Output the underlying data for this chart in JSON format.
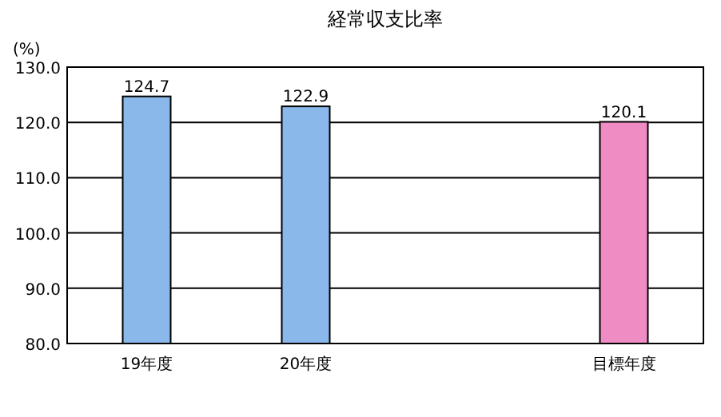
{
  "chart_data": {
    "type": "bar",
    "title": "経常収支比率",
    "ylabel": "(%)",
    "categories": [
      "19年度",
      "20年度",
      null,
      "目標年度"
    ],
    "values": [
      124.7,
      122.9,
      null,
      120.1
    ],
    "colors": [
      "#8ab8ea",
      "#8ab8ea",
      null,
      "#f08cc4"
    ],
    "value_labels": [
      "124.7",
      "122.9",
      null,
      "120.1"
    ],
    "ylim": [
      80,
      130
    ],
    "yticks": [
      {
        "value": 80,
        "label": "80.0"
      },
      {
        "value": 90,
        "label": "90.0"
      },
      {
        "value": 100,
        "label": "100.0"
      },
      {
        "value": 110,
        "label": "110.0"
      },
      {
        "value": 120,
        "label": "120.0"
      },
      {
        "value": 130,
        "label": "130.0"
      }
    ],
    "grid": "y"
  }
}
